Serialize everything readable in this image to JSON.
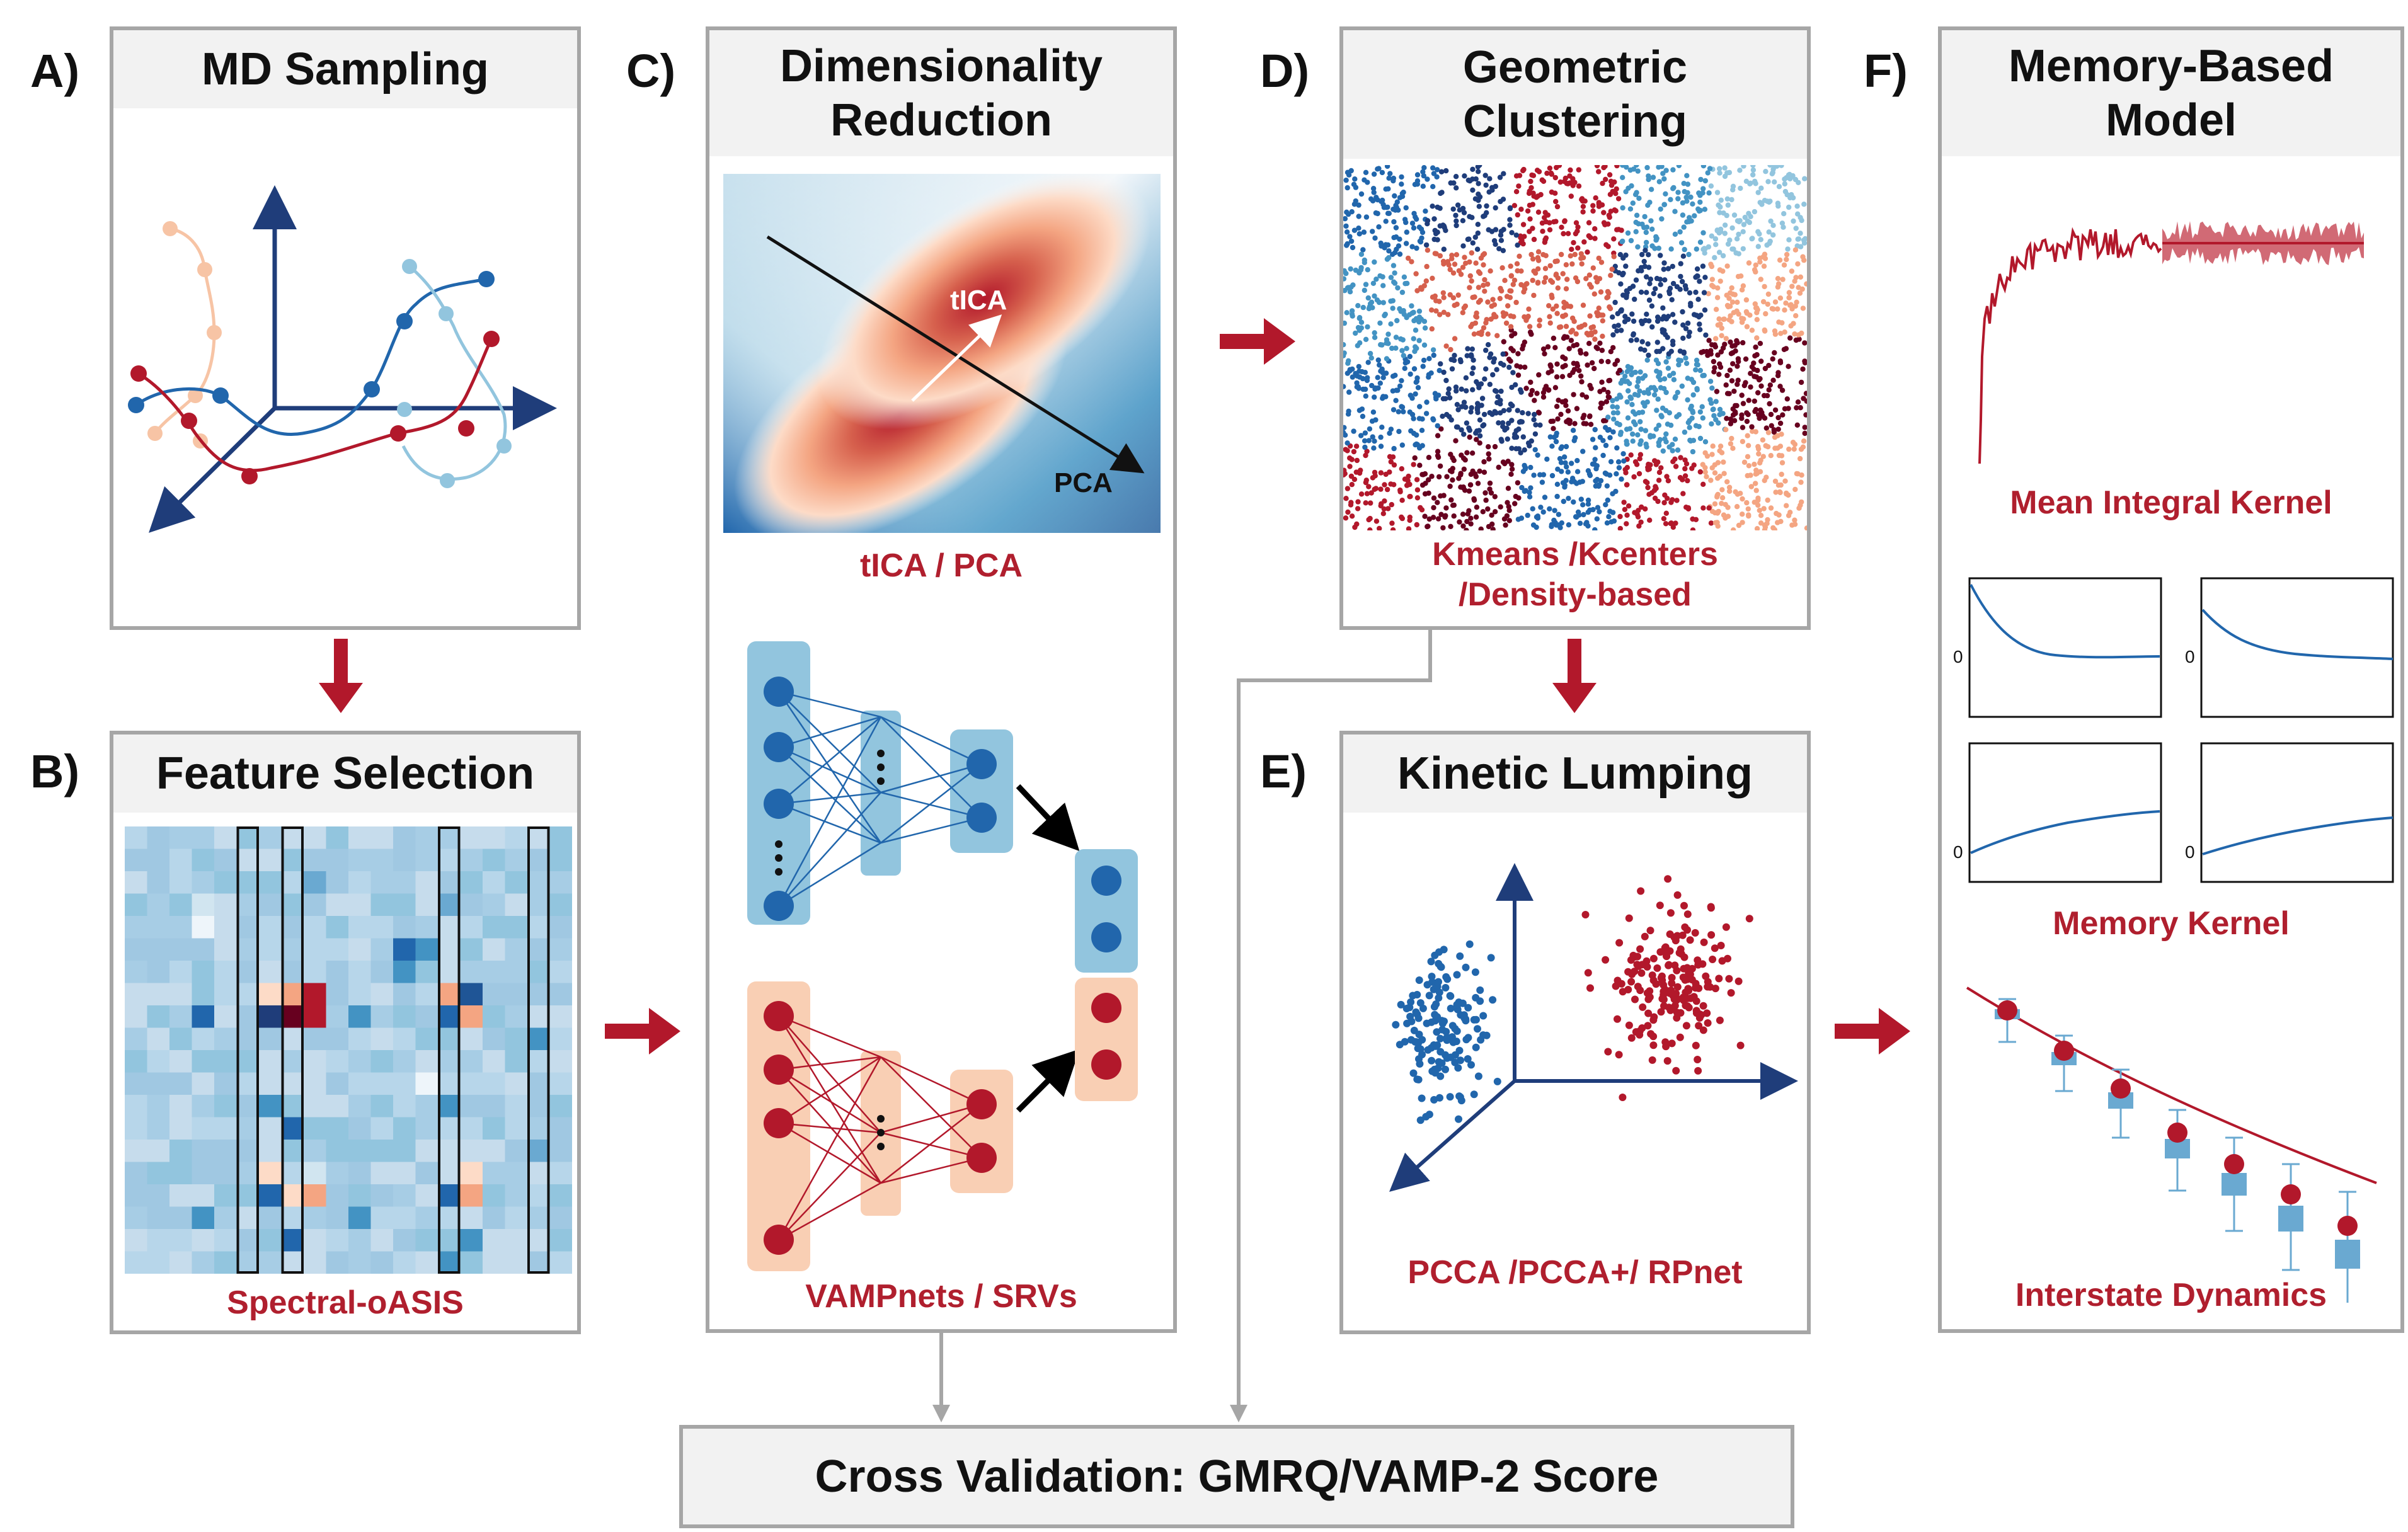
{
  "colors": {
    "dark_blue": "#1f3d7a",
    "blue": "#2166ac",
    "mid_blue": "#4f8fc0",
    "light_blue": "#92c5de",
    "pale_blue": "#d1e5f0",
    "red": "#b2182b",
    "dark_red": "#67001f",
    "salmon": "#f4a582",
    "pale_red": "#fddbc7",
    "caption_red": "#b01f2e",
    "border_gray": "#a6a6a6",
    "header_gray": "#f2f2f2"
  },
  "panels": {
    "a": {
      "letter": "A)",
      "title": "MD Sampling"
    },
    "b": {
      "letter": "B)",
      "title": "Feature Selection",
      "caption": "Spectral-oASIS"
    },
    "c": {
      "letter": "C)",
      "title": "Dimensionality\nReduction",
      "label_tica": "tICA",
      "label_pca": "PCA",
      "caption_top": "tICA / PCA",
      "caption_bottom": "VAMPnets / SRVs"
    },
    "d": {
      "letter": "D)",
      "title": "Geometric\nClustering",
      "caption": "Kmeans /Kcenters\n/Density-based"
    },
    "e": {
      "letter": "E)",
      "title": "Kinetic Lumping",
      "caption": "PCCA /PCCA+/ RPnet"
    },
    "f": {
      "letter": "F)",
      "title": "Memory-Based\nModel",
      "caption_1": "Mean Integral Kernel",
      "caption_2": "Memory Kernel",
      "caption_3": "Interstate Dynamics",
      "zero_label": "0"
    }
  },
  "cross_validation": {
    "label": "Cross Validation: GMRQ/VAMP-2 Score"
  }
}
